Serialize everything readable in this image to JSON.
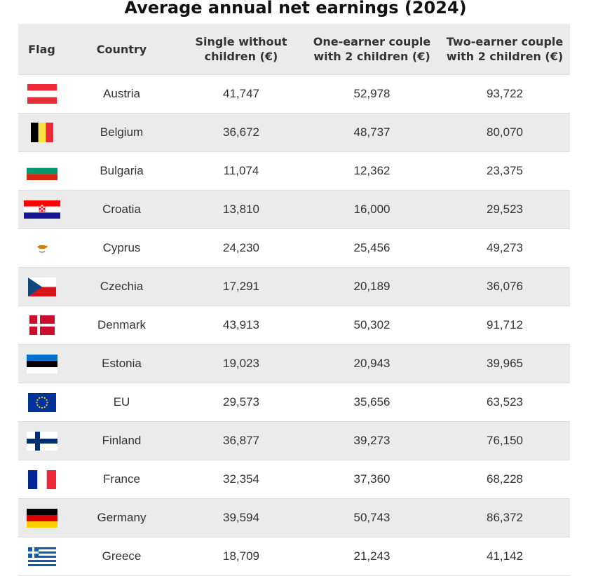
{
  "title": "Average annual net earnings (2024)",
  "headers": {
    "flag": "Flag",
    "country": "Country",
    "single": "Single without children (€)",
    "one_earner": "One-earner couple with 2 children (€)",
    "two_earner": "Two-earner couple with 2 children (€)"
  },
  "rows": [
    {
      "flag_icon": "austria-flag-icon",
      "country": "Austria",
      "single": "41,747",
      "one_earner": "52,978",
      "two_earner": "93,722"
    },
    {
      "flag_icon": "belgium-flag-icon",
      "country": "Belgium",
      "single": "36,672",
      "one_earner": "48,737",
      "two_earner": "80,070"
    },
    {
      "flag_icon": "bulgaria-flag-icon",
      "country": "Bulgaria",
      "single": "11,074",
      "one_earner": "12,362",
      "two_earner": "23,375"
    },
    {
      "flag_icon": "croatia-flag-icon",
      "country": "Croatia",
      "single": "13,810",
      "one_earner": "16,000",
      "two_earner": "29,523"
    },
    {
      "flag_icon": "cyprus-flag-icon",
      "country": "Cyprus",
      "single": "24,230",
      "one_earner": "25,456",
      "two_earner": "49,273"
    },
    {
      "flag_icon": "czechia-flag-icon",
      "country": "Czechia",
      "single": "17,291",
      "one_earner": "20,189",
      "two_earner": "36,076"
    },
    {
      "flag_icon": "denmark-flag-icon",
      "country": "Denmark",
      "single": "43,913",
      "one_earner": "50,302",
      "two_earner": "91,712"
    },
    {
      "flag_icon": "estonia-flag-icon",
      "country": "Estonia",
      "single": "19,023",
      "one_earner": "20,943",
      "two_earner": "39,965"
    },
    {
      "flag_icon": "eu-flag-icon",
      "country": "EU",
      "single": "29,573",
      "one_earner": "35,656",
      "two_earner": "63,523"
    },
    {
      "flag_icon": "finland-flag-icon",
      "country": "Finland",
      "single": "36,877",
      "one_earner": "39,273",
      "two_earner": "76,150"
    },
    {
      "flag_icon": "france-flag-icon",
      "country": "France",
      "single": "32,354",
      "one_earner": "37,360",
      "two_earner": "68,228"
    },
    {
      "flag_icon": "germany-flag-icon",
      "country": "Germany",
      "single": "39,594",
      "one_earner": "50,743",
      "two_earner": "86,372"
    },
    {
      "flag_icon": "greece-flag-icon",
      "country": "Greece",
      "single": "18,709",
      "one_earner": "21,243",
      "two_earner": "41,142"
    }
  ],
  "colors": {
    "header_bg": "#ebebeb",
    "alt_row_bg": "#ebebeb",
    "divider": "#dcdcdc",
    "text": "#333333"
  }
}
